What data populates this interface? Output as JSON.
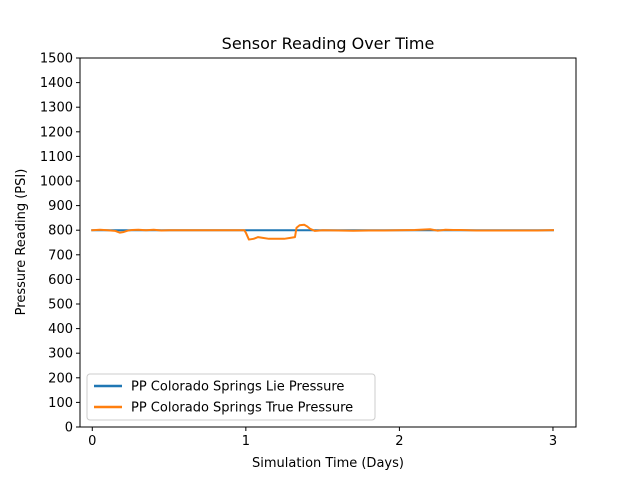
{
  "chart_data": {
    "type": "line",
    "title": "Sensor Reading Over Time",
    "xlabel": "Simulation Time (Days)",
    "ylabel": "Pressure Reading (PSI)",
    "xlim": [
      -0.08,
      3.15
    ],
    "ylim": [
      0,
      1500
    ],
    "xticks": [
      0,
      1,
      2,
      3
    ],
    "xtick_labels": [
      "0",
      "1",
      "2",
      "3"
    ],
    "yticks": [
      0,
      100,
      200,
      300,
      400,
      500,
      600,
      700,
      800,
      900,
      1000,
      1100,
      1200,
      1300,
      1400,
      1500
    ],
    "ytick_labels": [
      "0",
      "100",
      "200",
      "300",
      "400",
      "500",
      "600",
      "700",
      "800",
      "900",
      "1000",
      "1100",
      "1200",
      "1300",
      "1400",
      "1500"
    ],
    "grid": false,
    "legend_position": "lower-left",
    "series": [
      {
        "name": "PP Colorado Springs Lie Pressure",
        "color": "#1f77b4",
        "x": [
          0,
          0.5,
          1.0,
          1.5,
          2.0,
          2.5,
          3.0
        ],
        "y": [
          800,
          800,
          800,
          800,
          800,
          800,
          800
        ]
      },
      {
        "name": "PP Colorado Springs True Pressure",
        "color": "#ff7f0e",
        "x": [
          0,
          0.05,
          0.1,
          0.15,
          0.18,
          0.2,
          0.23,
          0.26,
          0.3,
          0.35,
          0.4,
          0.45,
          0.5,
          0.6,
          0.7,
          0.8,
          0.9,
          0.99,
          1.0,
          1.02,
          1.05,
          1.08,
          1.1,
          1.15,
          1.2,
          1.25,
          1.3,
          1.32,
          1.33,
          1.35,
          1.38,
          1.4,
          1.42,
          1.45,
          1.5,
          1.6,
          1.7,
          1.8,
          1.9,
          2.0,
          2.1,
          2.2,
          2.25,
          2.3,
          2.35,
          2.4,
          2.5,
          2.6,
          2.7,
          2.8,
          2.9,
          3.0
        ],
        "y": [
          800,
          802,
          800,
          797,
          790,
          792,
          798,
          801,
          802,
          800,
          802,
          799,
          800,
          800,
          800,
          800,
          800,
          800,
          790,
          762,
          765,
          772,
          770,
          765,
          765,
          765,
          770,
          772,
          810,
          820,
          822,
          815,
          805,
          797,
          800,
          799,
          798,
          799,
          799,
          800,
          801,
          804,
          798,
          802,
          801,
          801,
          799,
          799,
          799,
          799,
          799,
          800
        ]
      }
    ]
  }
}
